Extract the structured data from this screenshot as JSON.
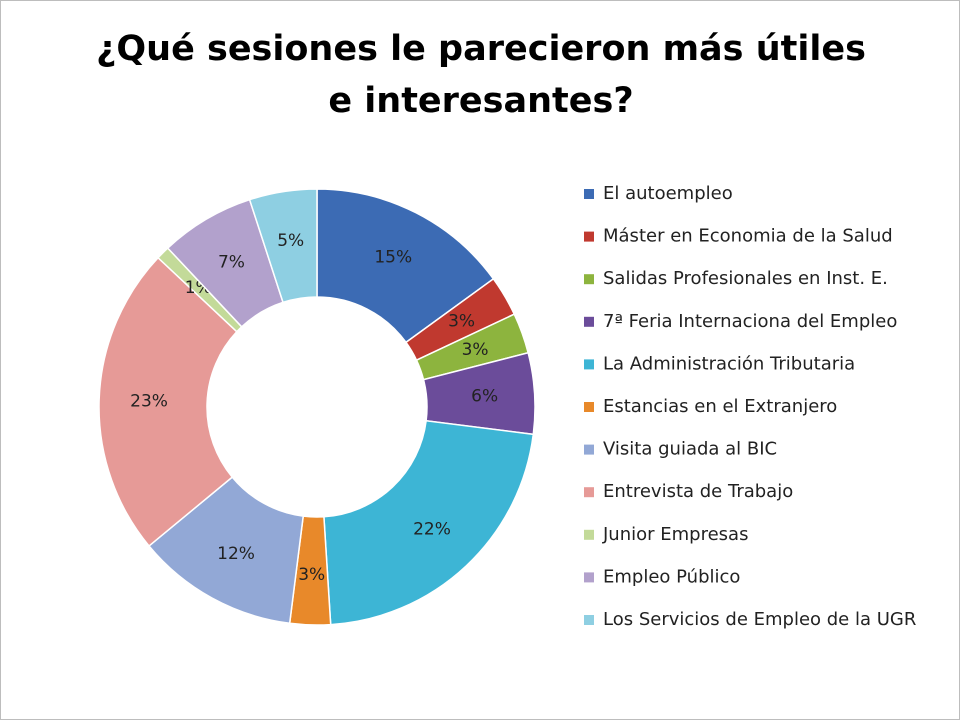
{
  "chart_data": {
    "type": "donut",
    "title": "¿Qué sesiones le parecieron más útiles e interesantes?",
    "categories": [
      "El autoempleo",
      "Máster en Economia de la Salud",
      "Salidas Profesionales en Inst. E.",
      "7ª Feria Internaciona del Empleo",
      "La Administración Tributaria",
      "Estancias en el Extranjero",
      "Visita guiada al BIC",
      "Entrevista de Trabajo",
      "Junior Empresas",
      "Empleo Público",
      "Los Servicios de Empleo de la UGR"
    ],
    "values": [
      15,
      3,
      3,
      6,
      22,
      3,
      12,
      23,
      1,
      7,
      5
    ],
    "value_labels": [
      "15%",
      "3%",
      "3%",
      "6%",
      "22%",
      "3%",
      "12%",
      "23%",
      "1%",
      "7%",
      "5%"
    ],
    "colors": [
      "#3c6bb4",
      "#c0392f",
      "#8db43e",
      "#6b4c9a",
      "#3db5d5",
      "#e8892a",
      "#92a8d6",
      "#e69a97",
      "#c3da99",
      "#b2a1cc",
      "#8ecfe2"
    ],
    "legend": "right"
  }
}
